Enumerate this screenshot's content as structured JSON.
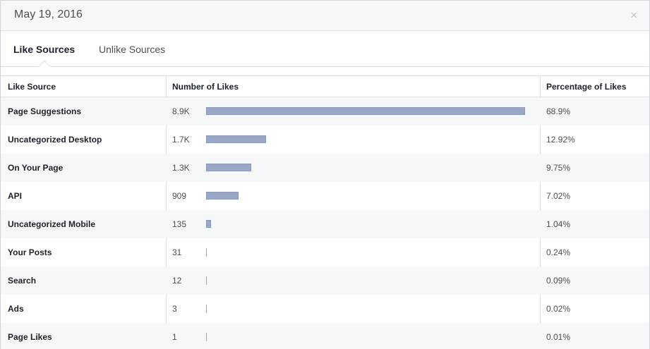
{
  "header": {
    "date": "May 19, 2016",
    "close_glyph": "×"
  },
  "tabs": [
    {
      "label": "Like Sources",
      "active": true
    },
    {
      "label": "Unlike Sources",
      "active": false
    }
  ],
  "table": {
    "columns": [
      "Like Source",
      "Number of Likes",
      "Percentage of Likes"
    ],
    "rows": [
      {
        "source": "Page Suggestions",
        "likes": "8.9K",
        "pct": "68.9%",
        "value": 68.9
      },
      {
        "source": "Uncategorized Desktop",
        "likes": "1.7K",
        "pct": "12.92%",
        "value": 12.92
      },
      {
        "source": "On Your Page",
        "likes": "1.3K",
        "pct": "9.75%",
        "value": 9.75
      },
      {
        "source": "API",
        "likes": "909",
        "pct": "7.02%",
        "value": 7.02
      },
      {
        "source": "Uncategorized Mobile",
        "likes": "135",
        "pct": "1.04%",
        "value": 1.04
      },
      {
        "source": "Your Posts",
        "likes": "31",
        "pct": "0.24%",
        "value": 0.24
      },
      {
        "source": "Search",
        "likes": "12",
        "pct": "0.09%",
        "value": 0.09
      },
      {
        "source": "Ads",
        "likes": "3",
        "pct": "0.02%",
        "value": 0.02
      },
      {
        "source": "Page Likes",
        "likes": "1",
        "pct": "0.01%",
        "value": 0.01
      }
    ]
  },
  "colors": {
    "bar": "#99a7c4",
    "header_bg": "#f6f7f9",
    "stripe": "#f6f7f9"
  }
}
